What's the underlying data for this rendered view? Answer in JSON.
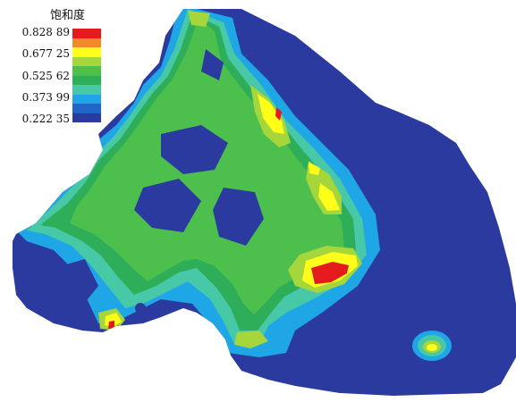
{
  "chart_data": {
    "type": "heatmap",
    "title": "",
    "legend": {
      "title": "饱和度",
      "placement": "top-left",
      "tick_labels": [
        "0.828 89",
        "0.677 25",
        "0.525 62",
        "0.373 99",
        "0.222 35"
      ],
      "tick_values": [
        0.82889,
        0.67725,
        0.52562,
        0.37399,
        0.22235
      ],
      "colors": [
        "#e41a1c",
        "#f08a24",
        "#ffff1a",
        "#a5d63c",
        "#4cbf4c",
        "#2fae5a",
        "#47c9a8",
        "#1ea6e6",
        "#1f66c8",
        "#2b3a9e"
      ]
    },
    "value_range": [
      0.22235,
      0.82889
    ],
    "background_level": 0.22235,
    "grid": false
  }
}
